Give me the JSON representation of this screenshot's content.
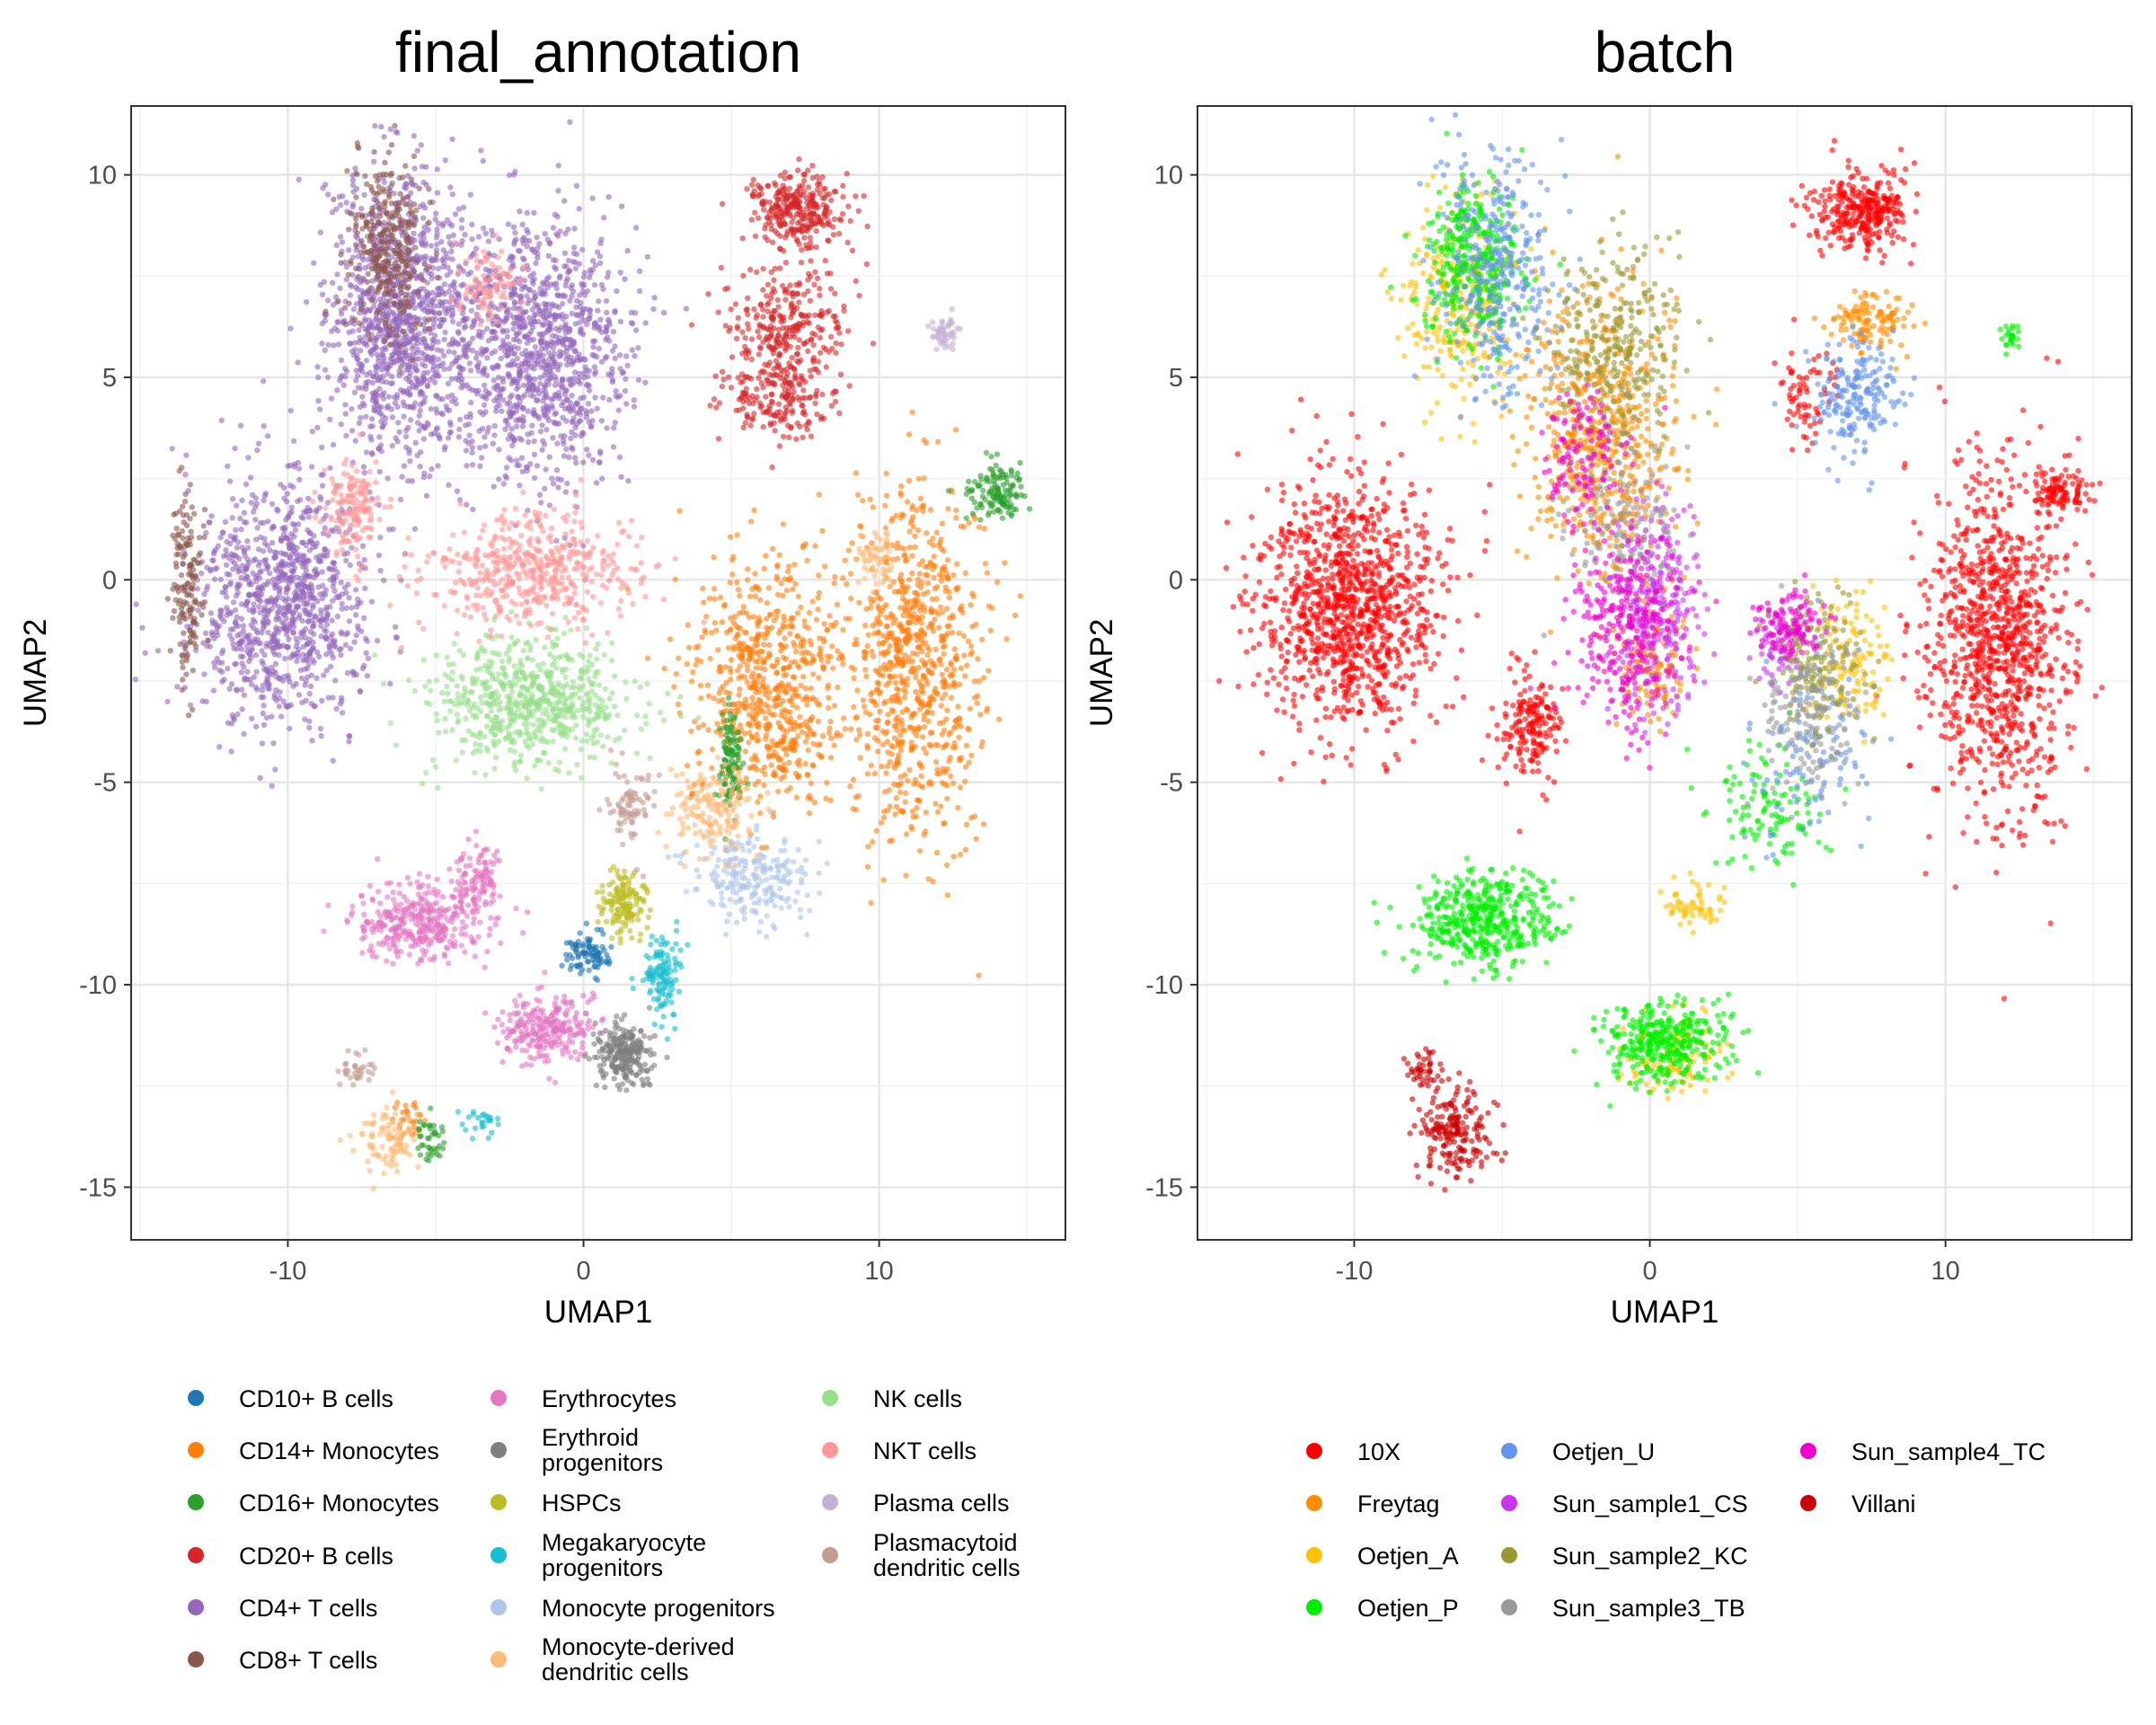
{
  "chart_data": [
    {
      "type": "scatter",
      "title": "final_annotation",
      "xlabel": "UMAP1",
      "ylabel": "UMAP2",
      "xlim": [
        -15.3,
        16.3
      ],
      "ylim": [
        -16.3,
        11.7
      ],
      "xticks": [
        -10,
        0,
        10
      ],
      "yticks": [
        -15,
        -10,
        -5,
        0,
        5,
        10
      ],
      "grid": true,
      "legend_position": "bottom",
      "series": [
        {
          "name": "CD10+ B cells",
          "color": "#1F77B4",
          "clusters": [
            {
              "x": 0.2,
              "y": -9.2,
              "sx": 0.5,
              "sy": 0.3,
              "n": 90
            }
          ]
        },
        {
          "name": "CD14+ Monocytes",
          "color": "#FF7F0E",
          "clusters": [
            {
              "x": 11.2,
              "y": -2.0,
              "sx": 1.4,
              "sy": 2.8,
              "n": 800
            },
            {
              "x": 6.2,
              "y": -2.6,
              "sx": 1.6,
              "sy": 1.9,
              "n": 700
            },
            {
              "x": -6.0,
              "y": -13.4,
              "sx": 0.3,
              "sy": 0.4,
              "n": 30
            }
          ]
        },
        {
          "name": "CD16+ Monocytes",
          "color": "#2CA02C",
          "clusters": [
            {
              "x": 14.0,
              "y": 2.2,
              "sx": 0.6,
              "sy": 0.4,
              "n": 130
            },
            {
              "x": 5.0,
              "y": -4.4,
              "sx": 0.25,
              "sy": 0.8,
              "n": 110
            },
            {
              "x": -5.2,
              "y": -13.9,
              "sx": 0.3,
              "sy": 0.4,
              "n": 40
            }
          ]
        },
        {
          "name": "CD20+ B cells",
          "color": "#D62728",
          "clusters": [
            {
              "x": 7.2,
              "y": 9.1,
              "sx": 1.0,
              "sy": 0.6,
              "n": 300
            },
            {
              "x": 6.8,
              "y": 6.2,
              "sx": 1.3,
              "sy": 0.9,
              "n": 280
            },
            {
              "x": 6.5,
              "y": 4.4,
              "sx": 1.1,
              "sy": 0.7,
              "n": 180
            }
          ]
        },
        {
          "name": "CD4+ T cells",
          "color": "#9467BD",
          "clusters": [
            {
              "x": -6.2,
              "y": 6.5,
              "sx": 1.5,
              "sy": 2.2,
              "n": 1100
            },
            {
              "x": -1.6,
              "y": 5.6,
              "sx": 2.0,
              "sy": 2.0,
              "n": 1100
            },
            {
              "x": -10.2,
              "y": -0.5,
              "sx": 1.8,
              "sy": 1.9,
              "n": 1000
            }
          ]
        },
        {
          "name": "CD8+ T cells",
          "color": "#8C564B",
          "clusters": [
            {
              "x": -6.6,
              "y": 8.3,
              "sx": 0.9,
              "sy": 1.4,
              "n": 300
            },
            {
              "x": -13.4,
              "y": 0.0,
              "sx": 0.3,
              "sy": 1.5,
              "n": 150
            }
          ]
        },
        {
          "name": "Erythrocytes",
          "color": "#E377C2",
          "clusters": [
            {
              "x": -5.5,
              "y": -8.5,
              "sx": 1.5,
              "sy": 0.6,
              "n": 350
            },
            {
              "x": -3.6,
              "y": -7.4,
              "sx": 0.5,
              "sy": 0.6,
              "n": 100
            },
            {
              "x": -1.4,
              "y": -11.0,
              "sx": 1.0,
              "sy": 0.5,
              "n": 250
            }
          ]
        },
        {
          "name": "Erythroid progenitors",
          "color": "#7F7F7F",
          "clusters": [
            {
              "x": 1.4,
              "y": -11.7,
              "sx": 0.6,
              "sy": 0.5,
              "n": 230
            }
          ]
        },
        {
          "name": "HSPCs",
          "color": "#BCBD22",
          "clusters": [
            {
              "x": 1.4,
              "y": -8.0,
              "sx": 0.45,
              "sy": 0.5,
              "n": 140
            }
          ]
        },
        {
          "name": "Megakaryocyte progenitors",
          "color": "#17BECF",
          "clusters": [
            {
              "x": 2.6,
              "y": -9.8,
              "sx": 0.4,
              "sy": 0.7,
              "n": 120
            },
            {
              "x": -3.4,
              "y": -13.4,
              "sx": 0.5,
              "sy": 0.2,
              "n": 25
            }
          ]
        },
        {
          "name": "Monocyte progenitors",
          "color": "#AEC7E8",
          "clusters": [
            {
              "x": 5.6,
              "y": -7.4,
              "sx": 1.3,
              "sy": 0.7,
              "n": 220
            }
          ]
        },
        {
          "name": "Monocyte-derived dendritic cells",
          "color": "#FFBB78",
          "clusters": [
            {
              "x": 4.4,
              "y": -5.8,
              "sx": 0.9,
              "sy": 0.7,
              "n": 160
            },
            {
              "x": 9.9,
              "y": 0.6,
              "sx": 0.4,
              "sy": 0.5,
              "n": 60
            },
            {
              "x": -6.7,
              "y": -13.8,
              "sx": 0.6,
              "sy": 0.5,
              "n": 90
            }
          ]
        },
        {
          "name": "NK cells",
          "color": "#98DF8A",
          "clusters": [
            {
              "x": -1.8,
              "y": -3.0,
              "sx": 2.0,
              "sy": 1.0,
              "n": 650
            }
          ]
        },
        {
          "name": "NKT cells",
          "color": "#FF9896",
          "clusters": [
            {
              "x": -1.8,
              "y": 0.2,
              "sx": 2.3,
              "sy": 0.9,
              "n": 500
            },
            {
              "x": -7.8,
              "y": 1.8,
              "sx": 0.6,
              "sy": 0.7,
              "n": 150
            },
            {
              "x": -3.2,
              "y": 7.2,
              "sx": 0.6,
              "sy": 0.6,
              "n": 90
            }
          ]
        },
        {
          "name": "Plasma cells",
          "color": "#C5B0D5",
          "clusters": [
            {
              "x": 12.2,
              "y": 6.1,
              "sx": 0.3,
              "sy": 0.25,
              "n": 50
            }
          ]
        },
        {
          "name": "Plasmacytoid dendritic cells",
          "color": "#C49C94",
          "clusters": [
            {
              "x": 1.6,
              "y": -5.5,
              "sx": 0.5,
              "sy": 0.6,
              "n": 80
            },
            {
              "x": -7.7,
              "y": -12.1,
              "sx": 0.35,
              "sy": 0.25,
              "n": 35
            }
          ]
        }
      ]
    },
    {
      "type": "scatter",
      "title": "batch",
      "xlabel": "UMAP1",
      "ylabel": "UMAP2",
      "xlim": [
        -15.3,
        16.3
      ],
      "ylim": [
        -16.3,
        11.7
      ],
      "xticks": [
        -10,
        0,
        10
      ],
      "yticks": [
        -15,
        -10,
        -5,
        0,
        5,
        10
      ],
      "grid": true,
      "legend_position": "bottom",
      "series": [
        {
          "name": "10X",
          "color": "#FF0000",
          "clusters": [
            {
              "x": -10.2,
              "y": -0.6,
              "sx": 1.9,
              "sy": 1.9,
              "n": 1100
            },
            {
              "x": 11.8,
              "y": -1.6,
              "sx": 1.5,
              "sy": 2.7,
              "n": 1000
            },
            {
              "x": 7.2,
              "y": 9.1,
              "sx": 1.0,
              "sy": 0.6,
              "n": 320
            },
            {
              "x": -4.0,
              "y": -3.6,
              "sx": 0.7,
              "sy": 0.8,
              "n": 180
            },
            {
              "x": 13.8,
              "y": 2.2,
              "sx": 0.6,
              "sy": 0.4,
              "n": 100
            },
            {
              "x": 5.4,
              "y": 4.6,
              "sx": 0.6,
              "sy": 0.8,
              "n": 70
            }
          ]
        },
        {
          "name": "Freytag",
          "color": "#FF8C00",
          "clusters": [
            {
              "x": -1.6,
              "y": 3.6,
              "sx": 1.6,
              "sy": 2.2,
              "n": 600
            },
            {
              "x": 7.4,
              "y": 6.4,
              "sx": 0.9,
              "sy": 0.4,
              "n": 120
            },
            {
              "x": 0.2,
              "y": -2.2,
              "sx": 0.8,
              "sy": 0.9,
              "n": 120
            }
          ]
        },
        {
          "name": "Oetjen_A",
          "color": "#FFC107",
          "clusters": [
            {
              "x": -6.4,
              "y": 7.0,
              "sx": 1.2,
              "sy": 1.6,
              "n": 300
            },
            {
              "x": 6.8,
              "y": -2.0,
              "sx": 0.8,
              "sy": 1.0,
              "n": 120
            },
            {
              "x": 0.8,
              "y": -11.8,
              "sx": 1.0,
              "sy": 0.6,
              "n": 120
            },
            {
              "x": 1.4,
              "y": -8.0,
              "sx": 0.6,
              "sy": 0.5,
              "n": 60
            }
          ]
        },
        {
          "name": "Oetjen_P",
          "color": "#00EE00",
          "clusters": [
            {
              "x": -5.6,
              "y": -8.4,
              "sx": 1.6,
              "sy": 0.7,
              "n": 450
            },
            {
              "x": 0.5,
              "y": -11.4,
              "sx": 1.3,
              "sy": 0.6,
              "n": 350
            },
            {
              "x": -6.0,
              "y": 7.8,
              "sx": 1.0,
              "sy": 1.3,
              "n": 350
            },
            {
              "x": 4.0,
              "y": -5.6,
              "sx": 1.2,
              "sy": 0.9,
              "n": 120
            },
            {
              "x": 12.2,
              "y": 6.0,
              "sx": 0.25,
              "sy": 0.25,
              "n": 25
            }
          ]
        },
        {
          "name": "Oetjen_U",
          "color": "#6495ED",
          "clusters": [
            {
              "x": -5.2,
              "y": 7.6,
              "sx": 1.3,
              "sy": 1.8,
              "n": 350
            },
            {
              "x": 7.0,
              "y": 4.6,
              "sx": 0.9,
              "sy": 0.9,
              "n": 200
            },
            {
              "x": 5.6,
              "y": -4.0,
              "sx": 1.4,
              "sy": 1.5,
              "n": 120
            }
          ]
        },
        {
          "name": "Sun_sample1_CS",
          "color": "#CC33EE",
          "clusters": [
            {
              "x": 0.2,
              "y": -0.8,
              "sx": 0.9,
              "sy": 1.6,
              "n": 300
            },
            {
              "x": 4.4,
              "y": -1.6,
              "sx": 0.5,
              "sy": 0.7,
              "n": 60
            }
          ]
        },
        {
          "name": "Sun_sample2_KC",
          "color": "#999933",
          "clusters": [
            {
              "x": -1.2,
              "y": 5.6,
              "sx": 1.5,
              "sy": 1.6,
              "n": 300
            },
            {
              "x": 5.6,
              "y": -2.0,
              "sx": 1.0,
              "sy": 1.0,
              "n": 150
            }
          ]
        },
        {
          "name": "Sun_sample3_TB",
          "color": "#999999",
          "clusters": [
            {
              "x": 5.4,
              "y": -3.4,
              "sx": 1.2,
              "sy": 1.2,
              "n": 150
            },
            {
              "x": -1.0,
              "y": 1.6,
              "sx": 1.2,
              "sy": 1.2,
              "n": 150
            }
          ]
        },
        {
          "name": "Sun_sample4_TC",
          "color": "#EE00CC",
          "clusters": [
            {
              "x": -0.8,
              "y": -1.2,
              "sx": 1.2,
              "sy": 1.6,
              "n": 300
            },
            {
              "x": 4.8,
              "y": -1.0,
              "sx": 0.7,
              "sy": 0.6,
              "n": 120
            },
            {
              "x": -2.4,
              "y": 3.0,
              "sx": 0.8,
              "sy": 1.0,
              "n": 120
            }
          ]
        },
        {
          "name": "Villani",
          "color": "#CC0000",
          "clusters": [
            {
              "x": -6.6,
              "y": -13.6,
              "sx": 0.8,
              "sy": 0.7,
              "n": 200
            },
            {
              "x": -7.7,
              "y": -12.1,
              "sx": 0.35,
              "sy": 0.3,
              "n": 40
            }
          ]
        }
      ]
    }
  ],
  "legends": [
    {
      "columns": [
        [
          "CD10+ B cells",
          "CD14+ Monocytes",
          "CD16+ Monocytes",
          "CD20+ B cells",
          "CD4+ T cells",
          "CD8+ T cells"
        ],
        [
          "Erythrocytes",
          "Erythroid progenitors",
          "HSPCs",
          "Megakaryocyte progenitors",
          "Monocyte progenitors",
          "Monocyte-derived dendritic cells"
        ],
        [
          "NK cells",
          "NKT cells",
          "Plasma cells",
          "Plasmacytoid dendritic cells"
        ]
      ]
    },
    {
      "columns": [
        [
          "10X",
          "Freytag",
          "Oetjen_A",
          "Oetjen_P"
        ],
        [
          "Oetjen_U",
          "Sun_sample1_CS",
          "Sun_sample2_KC",
          "Sun_sample3_TB"
        ],
        [
          "Sun_sample4_TC",
          "Villani"
        ]
      ]
    }
  ]
}
